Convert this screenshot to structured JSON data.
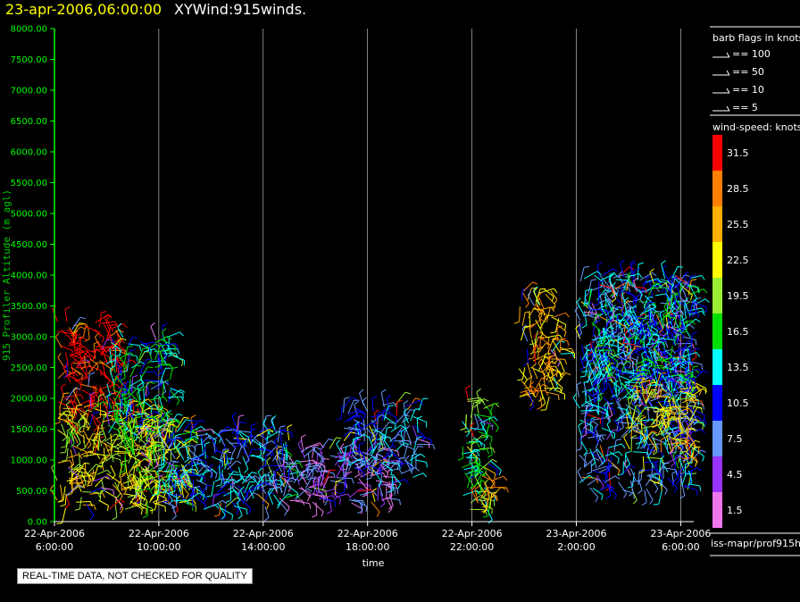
{
  "header": {
    "date_title": "23-apr-2006,06:00:00",
    "product_title": "XYWind:915winds."
  },
  "footer": {
    "quality_note": "REAL-TIME DATA, NOT CHECKED FOR QUALITY",
    "source_id": "iss-mapr/prof915h"
  },
  "colors": {
    "background": "#000000",
    "axis": "#00ff00",
    "ylabel": "#00cc00",
    "title_date": "#ffff00",
    "grid": "#ffffff"
  },
  "chart_data": {
    "type": "scatter",
    "subtype": "wind-barb time-height section",
    "xlabel": "time",
    "ylabel": "915 Profiler Altitude (m agl)",
    "ylim": [
      0,
      8000
    ],
    "xlim_hours": [
      -24,
      0.5
    ],
    "x_ticks": [
      {
        "hour": -24,
        "line1": "22-Apr-2006",
        "line2": "6:00:00"
      },
      {
        "hour": -20,
        "line1": "22-Apr-2006",
        "line2": "10:00:00"
      },
      {
        "hour": -16,
        "line1": "22-Apr-2006",
        "line2": "14:00:00"
      },
      {
        "hour": -12,
        "line1": "22-Apr-2006",
        "line2": "18:00:00"
      },
      {
        "hour": -8,
        "line1": "22-Apr-2006",
        "line2": "22:00:00"
      },
      {
        "hour": -4,
        "line1": "23-Apr-2006",
        "line2": "2:00:00"
      },
      {
        "hour": 0,
        "line1": "23-Apr-2006",
        "line2": "6:00:00"
      }
    ],
    "y_ticks": [
      "0.00",
      "500.00",
      "1000.00",
      "1500.00",
      "2000.00",
      "2500.00",
      "3000.00",
      "3500.00",
      "4000.00",
      "4500.00",
      "5000.00",
      "5500.00",
      "6000.00",
      "6500.00",
      "7000.00",
      "7500.00",
      "8000.00"
    ],
    "grid": "vertical lines at time ticks",
    "barb_legend": {
      "title": "barb flags in knots",
      "entries": [
        {
          "label": "== 100"
        },
        {
          "label": "== 50"
        },
        {
          "label": "== 10"
        },
        {
          "label": "== 5"
        }
      ]
    },
    "colorbar": {
      "title": "wind-speed: knots",
      "levels": [
        {
          "label": "31.5",
          "color": "#ff0000"
        },
        {
          "label": "28.5",
          "color": "#ff7f00"
        },
        {
          "label": "25.5",
          "color": "#ffb000"
        },
        {
          "label": "22.5",
          "color": "#ffff00"
        },
        {
          "label": "19.5",
          "color": "#99ee33"
        },
        {
          "label": "16.5",
          "color": "#00dd00"
        },
        {
          "label": "13.5",
          "color": "#00ffff"
        },
        {
          "label": "10.5",
          "color": "#0000ff"
        },
        {
          "label": "7.5",
          "color": "#6699ff"
        },
        {
          "label": "4.5",
          "color": "#9933ff"
        },
        {
          "label": "1.5",
          "color": "#ee77ee"
        }
      ]
    },
    "wind_clusters": [
      {
        "t0": -23.9,
        "t1": -21.5,
        "z0": 1700,
        "z1": 3250,
        "speed": 31.5
      },
      {
        "t0": -23.9,
        "t1": -20.0,
        "z0": 200,
        "z1": 1900,
        "speed": 22.5
      },
      {
        "t0": -22.0,
        "t1": -19.5,
        "z0": 1500,
        "z1": 3000,
        "speed": 13.5
      },
      {
        "t0": -21.5,
        "t1": -19.0,
        "z0": 300,
        "z1": 1600,
        "speed": 19.5
      },
      {
        "t0": -20.0,
        "t1": -15.0,
        "z0": 200,
        "z1": 1500,
        "speed": 10.5
      },
      {
        "t0": -15.5,
        "t1": -11.0,
        "z0": 300,
        "z1": 1200,
        "speed": 4.5
      },
      {
        "t0": -13.0,
        "t1": -10.0,
        "z0": 700,
        "z1": 1900,
        "speed": 10.5
      },
      {
        "t0": -8.4,
        "t1": -7.3,
        "z0": 200,
        "z1": 2000,
        "speed": 16.5
      },
      {
        "t0": -7.8,
        "t1": -7.2,
        "z0": 200,
        "z1": 900,
        "speed": 25.5
      },
      {
        "t0": -6.2,
        "t1": -4.6,
        "z0": 2000,
        "z1": 3800,
        "speed": 25.5
      },
      {
        "t0": -3.9,
        "t1": 0.5,
        "z0": 500,
        "z1": 4000,
        "speed": 10.5
      },
      {
        "t0": -2.0,
        "t1": 0.5,
        "z0": 1000,
        "z1": 2300,
        "speed": 22.5
      },
      {
        "t0": -3.5,
        "t1": 0.4,
        "z0": 2200,
        "z1": 3900,
        "speed": 13.5
      }
    ]
  }
}
